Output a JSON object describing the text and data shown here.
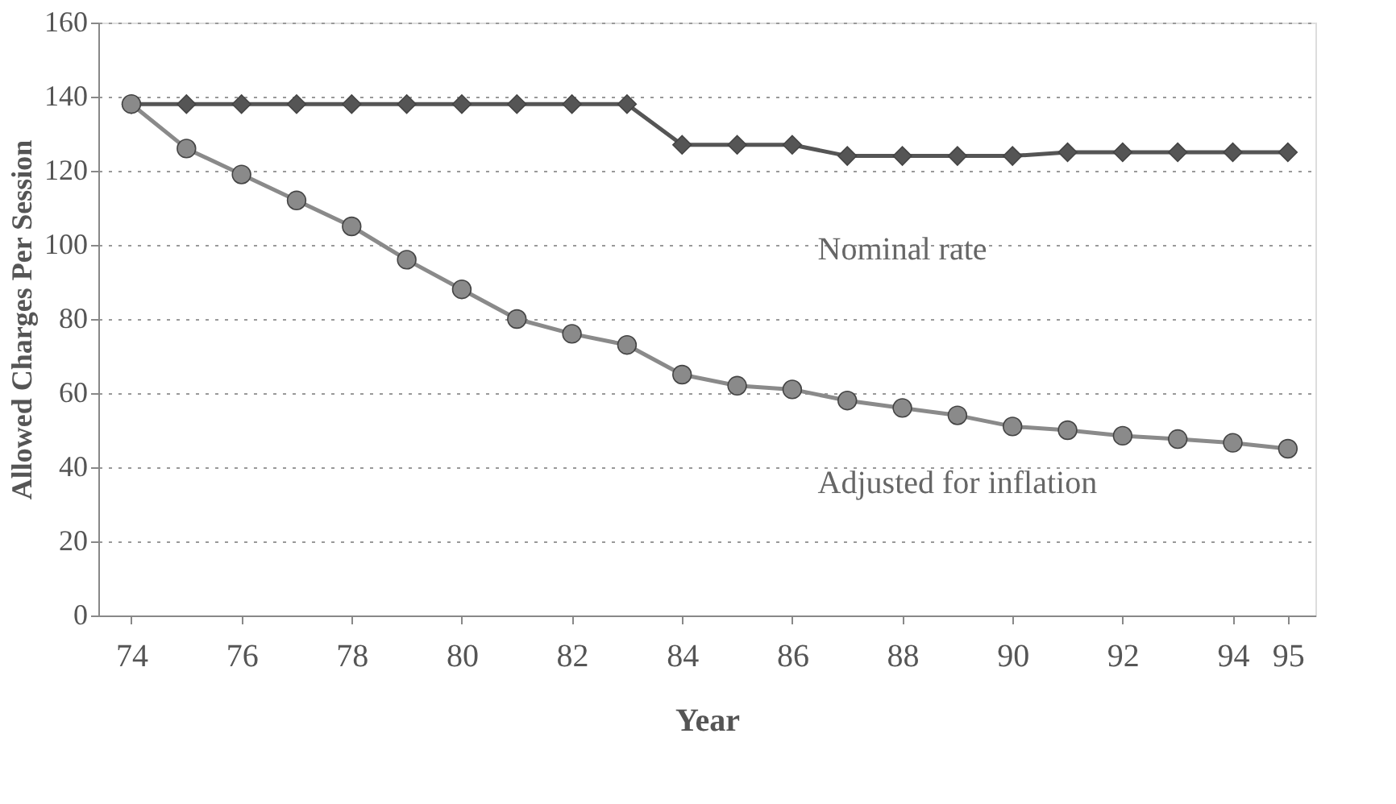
{
  "chart_data": {
    "type": "line",
    "xlabel": "Year",
    "ylabel": "Allowed Charges Per Session",
    "x": [
      74,
      75,
      76,
      77,
      78,
      79,
      80,
      81,
      82,
      83,
      84,
      85,
      86,
      87,
      88,
      89,
      90,
      91,
      92,
      93,
      94,
      95
    ],
    "series": [
      {
        "name": "Nominal rate",
        "color": "#555555",
        "marker": "diamond",
        "values": [
          138,
          138,
          138,
          138,
          138,
          138,
          138,
          138,
          138,
          138,
          127,
          127,
          127,
          124,
          124,
          124,
          124,
          125,
          125,
          125,
          125,
          125
        ]
      },
      {
        "name": "Adjusted for inflation",
        "color": "#8a8a8a",
        "marker": "circle",
        "values": [
          138,
          126,
          119,
          112,
          105,
          96,
          88,
          80,
          76,
          73,
          65,
          62,
          61,
          58,
          56,
          54,
          51,
          50,
          48.5,
          47.6,
          46.6,
          45
        ]
      }
    ],
    "xlim": [
      73.4,
      95.5
    ],
    "xticks": [
      74,
      76,
      78,
      80,
      82,
      84,
      86,
      88,
      90,
      92,
      94,
      95
    ],
    "ylim": [
      0,
      160
    ],
    "yticks": [
      0,
      20,
      40,
      60,
      80,
      100,
      120,
      140,
      160
    ],
    "grid": "y",
    "legend": false,
    "line_style": "solid"
  }
}
